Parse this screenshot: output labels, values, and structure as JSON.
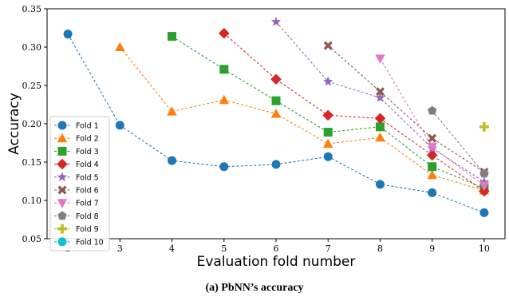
{
  "caption": "(a) PbNN’s accuracy",
  "chart_data": {
    "type": "line",
    "title": "",
    "xlabel": "Evaluation fold number",
    "ylabel": "Accuracy",
    "xlim": [
      1.6,
      10.4
    ],
    "ylim": [
      0.05,
      0.35
    ],
    "xticks": [
      2,
      3,
      4,
      5,
      6,
      7,
      8,
      9,
      10
    ],
    "yticks": [
      0.05,
      0.1,
      0.15,
      0.2,
      0.25,
      0.3,
      0.35
    ],
    "grid": false,
    "legend_position": "center-left",
    "series": [
      {
        "name": "Fold 1",
        "color": "#1f77b4",
        "marker": "circle",
        "x": [
          2,
          3,
          4,
          5,
          6,
          7,
          8,
          9,
          10
        ],
        "y": [
          0.317,
          0.198,
          0.152,
          0.144,
          0.147,
          0.157,
          0.121,
          0.11,
          0.084
        ]
      },
      {
        "name": "Fold 2",
        "color": "#ff7f0e",
        "marker": "triangle-up",
        "x": [
          3,
          4,
          5,
          6,
          7,
          8,
          9,
          10
        ],
        "y": [
          0.3,
          0.216,
          0.231,
          0.213,
          0.174,
          0.182,
          0.133,
          0.113
        ]
      },
      {
        "name": "Fold 3",
        "color": "#2ca02c",
        "marker": "square",
        "x": [
          4,
          5,
          6,
          7,
          8,
          9,
          10
        ],
        "y": [
          0.314,
          0.271,
          0.23,
          0.189,
          0.196,
          0.144,
          0.116
        ]
      },
      {
        "name": "Fold 4",
        "color": "#d62728",
        "marker": "diamond",
        "x": [
          5,
          6,
          7,
          8,
          9,
          10
        ],
        "y": [
          0.318,
          0.258,
          0.211,
          0.207,
          0.159,
          0.112
        ]
      },
      {
        "name": "Fold 5",
        "color": "#9467bd",
        "marker": "star",
        "x": [
          6,
          7,
          8,
          9,
          10
        ],
        "y": [
          0.333,
          0.255,
          0.234,
          0.168,
          0.124
        ]
      },
      {
        "name": "Fold 6",
        "color": "#8c564b",
        "marker": "x",
        "x": [
          7,
          8,
          9,
          10
        ],
        "y": [
          0.302,
          0.242,
          0.181,
          0.137
        ]
      },
      {
        "name": "Fold 7",
        "color": "#e377c2",
        "marker": "triangle-down",
        "x": [
          8,
          9,
          10
        ],
        "y": [
          0.285,
          0.17,
          0.119
        ]
      },
      {
        "name": "Fold 8",
        "color": "#7f7f7f",
        "marker": "pentagon",
        "x": [
          9,
          10
        ],
        "y": [
          0.217,
          0.135
        ]
      },
      {
        "name": "Fold 9",
        "color": "#bcbd22",
        "marker": "plus",
        "x": [
          10
        ],
        "y": [
          0.196
        ]
      },
      {
        "name": "Fold 10",
        "color": "#17becf",
        "marker": "circle",
        "x": [],
        "y": []
      }
    ]
  }
}
